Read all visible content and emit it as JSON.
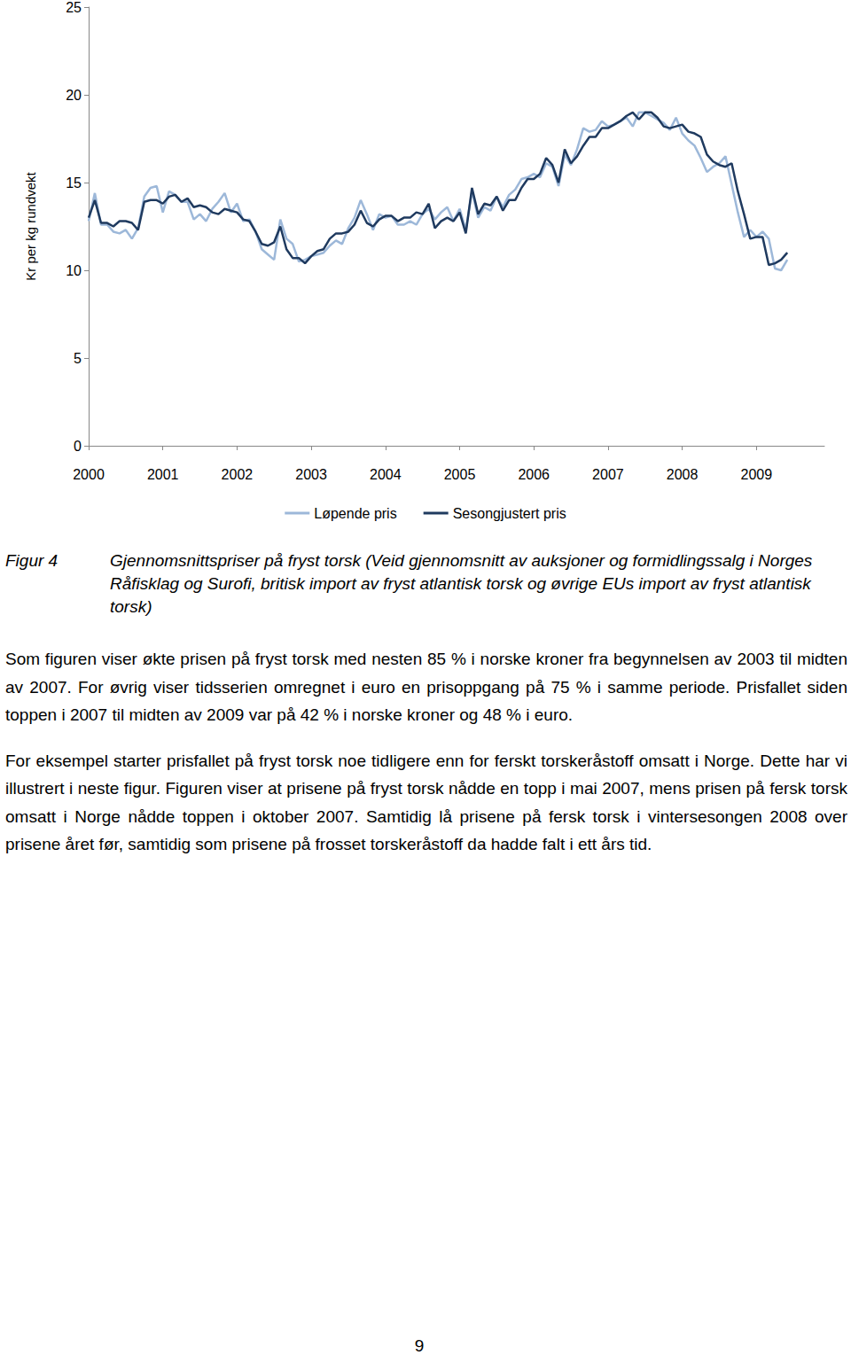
{
  "chart_data": {
    "type": "line",
    "ylabel": "Kr per kg rundvekt",
    "categories": [
      "2000",
      null,
      null,
      null,
      null,
      null,
      null,
      null,
      null,
      null,
      null,
      null,
      "2001",
      null,
      null,
      null,
      null,
      null,
      null,
      null,
      null,
      null,
      null,
      null,
      "2002",
      null,
      null,
      null,
      null,
      null,
      null,
      null,
      null,
      null,
      null,
      null,
      "2003",
      null,
      null,
      null,
      null,
      null,
      null,
      null,
      null,
      null,
      null,
      null,
      "2004",
      null,
      null,
      null,
      null,
      null,
      null,
      null,
      null,
      null,
      null,
      null,
      "2005",
      null,
      null,
      null,
      null,
      null,
      null,
      null,
      null,
      null,
      null,
      null,
      "2006",
      null,
      null,
      null,
      null,
      null,
      null,
      null,
      null,
      null,
      null,
      null,
      "2007",
      null,
      null,
      null,
      null,
      null,
      null,
      null,
      null,
      null,
      null,
      null,
      "2008",
      null,
      null,
      null,
      null,
      null,
      null,
      null,
      null,
      null,
      null,
      null,
      "2009",
      null,
      null,
      null,
      null,
      null,
      null,
      null,
      null,
      null,
      null,
      null
    ],
    "series": [
      {
        "name": "Løpende pris",
        "color": "#9db8d9",
        "line_style": "solid",
        "marker": "none",
        "values": [
          12.8,
          14.4,
          12.6,
          12.6,
          12.2,
          12.1,
          12.3,
          11.8,
          12.4,
          14.2,
          14.7,
          14.8,
          13.3,
          14.5,
          14.3,
          13.9,
          13.9,
          12.9,
          13.2,
          12.8,
          13.5,
          13.9,
          14.4,
          13.3,
          13.8,
          12.8,
          12.9,
          12.2,
          11.2,
          10.9,
          10.6,
          12.9,
          11.8,
          11.5,
          10.5,
          10.6,
          10.8,
          10.9,
          11.0,
          11.4,
          11.7,
          11.5,
          12.4,
          13.0,
          14.0,
          13.2,
          12.3,
          13.2,
          13.0,
          13.1,
          12.6,
          12.6,
          12.8,
          12.6,
          13.2,
          13.5,
          12.9,
          13.3,
          13.6,
          12.8,
          13.5,
          12.3,
          14.5,
          13.0,
          13.6,
          13.4,
          14.2,
          13.6,
          14.3,
          14.6,
          15.2,
          15.3,
          15.5,
          15.3,
          16.1,
          15.9,
          14.8,
          16.6,
          16.0,
          16.9,
          18.1,
          17.9,
          18.0,
          18.5,
          18.2,
          18.3,
          18.5,
          18.7,
          18.2,
          19.0,
          19.0,
          18.8,
          18.6,
          18.4,
          18.0,
          18.7,
          17.8,
          17.4,
          17.1,
          16.4,
          15.6,
          15.9,
          16.1,
          16.5,
          14.9,
          13.3,
          11.9,
          12.3,
          11.9,
          12.2,
          11.8,
          10.1,
          10.0,
          10.6,
          null,
          null,
          null,
          null,
          null,
          null
        ]
      },
      {
        "name": "Sesongjustert pris",
        "color": "#1f3a5f",
        "line_style": "solid",
        "marker": "none",
        "values": [
          13.0,
          14.0,
          12.7,
          12.7,
          12.5,
          12.8,
          12.8,
          12.7,
          12.3,
          13.9,
          14.0,
          14.0,
          13.8,
          14.2,
          14.3,
          13.9,
          14.1,
          13.6,
          13.7,
          13.6,
          13.3,
          13.2,
          13.5,
          13.4,
          13.3,
          12.9,
          12.8,
          12.2,
          11.5,
          11.4,
          11.6,
          12.5,
          11.2,
          10.7,
          10.7,
          10.4,
          10.8,
          11.1,
          11.2,
          11.8,
          12.1,
          12.1,
          12.2,
          12.6,
          13.4,
          12.7,
          12.5,
          12.9,
          13.1,
          13.1,
          12.8,
          13.0,
          13.0,
          13.3,
          13.2,
          13.8,
          12.4,
          12.8,
          13.0,
          12.8,
          13.3,
          12.1,
          14.7,
          13.2,
          13.8,
          13.7,
          14.2,
          13.4,
          14.0,
          14.0,
          14.7,
          15.2,
          15.2,
          15.5,
          16.4,
          16.0,
          15.0,
          16.9,
          16.1,
          16.5,
          17.1,
          17.6,
          17.6,
          18.1,
          18.1,
          18.3,
          18.5,
          18.8,
          19.0,
          18.6,
          19.0,
          19.0,
          18.7,
          18.2,
          18.1,
          18.2,
          18.3,
          17.9,
          17.8,
          17.6,
          16.6,
          16.2,
          16.0,
          15.9,
          16.1,
          14.5,
          13.2,
          11.8,
          11.9,
          11.9,
          10.3,
          10.4,
          10.6,
          11.0,
          null,
          null,
          null,
          null,
          null,
          null
        ]
      }
    ],
    "ylim": [
      0,
      25
    ],
    "yticks": [
      0,
      5,
      10,
      15,
      20,
      25
    ],
    "grid": false,
    "legend": "bottom"
  },
  "figure": {
    "label": "Figur 4",
    "caption": "Gjennomsnittspriser på fryst torsk (Veid gjennomsnitt av auksjoner og formidlingssalg i Norges Råfisklag og Surofi, britisk import av fryst atlantisk torsk og øvrige EUs import av fryst atlantisk torsk)"
  },
  "paragraphs": [
    "Som figuren viser økte prisen på fryst torsk med nesten 85 % i norske kroner fra begynnelsen av 2003 til midten av 2007. For øvrig viser tidsserien omregnet i euro en prisoppgang på 75 % i samme periode. Prisfallet siden toppen i 2007 til midten av 2009 var på 42 % i norske kroner og 48 % i euro.",
    "For eksempel starter prisfallet på fryst torsk noe tidligere enn for ferskt torskeråstoff omsatt i Norge. Dette har vi illustrert i neste figur. Figuren viser at prisene på fryst torsk nådde en topp i mai 2007, mens prisen på fersk torsk omsatt i Norge nådde toppen i oktober 2007. Samtidig lå prisene på fersk torsk i vintersesongen 2008 over prisene året før, samtidig som prisene på frosset torskeråstoff da hadde falt i ett års tid."
  ],
  "page_number": "9"
}
